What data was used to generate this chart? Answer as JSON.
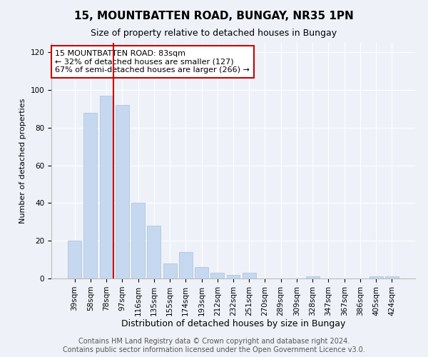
{
  "title": "15, MOUNTBATTEN ROAD, BUNGAY, NR35 1PN",
  "subtitle": "Size of property relative to detached houses in Bungay",
  "xlabel": "Distribution of detached houses by size in Bungay",
  "ylabel": "Number of detached properties",
  "categories": [
    "39sqm",
    "58sqm",
    "78sqm",
    "97sqm",
    "116sqm",
    "135sqm",
    "155sqm",
    "174sqm",
    "193sqm",
    "212sqm",
    "232sqm",
    "251sqm",
    "270sqm",
    "289sqm",
    "309sqm",
    "328sqm",
    "347sqm",
    "367sqm",
    "386sqm",
    "405sqm",
    "424sqm"
  ],
  "values": [
    20,
    88,
    97,
    92,
    40,
    28,
    8,
    14,
    6,
    3,
    2,
    3,
    0,
    0,
    0,
    1,
    0,
    0,
    0,
    1,
    1
  ],
  "bar_color": "#c5d8f0",
  "bar_edge_color": "#aabfd8",
  "highlight_bar_index": 2,
  "highlight_line_color": "#cc0000",
  "annotation_text": "15 MOUNTBATTEN ROAD: 83sqm\n← 32% of detached houses are smaller (127)\n67% of semi-detached houses are larger (266) →",
  "annotation_box_color": "#ffffff",
  "annotation_box_edge_color": "#cc0000",
  "ylim": [
    0,
    125
  ],
  "yticks": [
    0,
    20,
    40,
    60,
    80,
    100,
    120
  ],
  "background_color": "#eef2f8",
  "footer_text": "Contains HM Land Registry data © Crown copyright and database right 2024.\nContains public sector information licensed under the Open Government Licence v3.0.",
  "title_fontsize": 11,
  "subtitle_fontsize": 9,
  "xlabel_fontsize": 9,
  "ylabel_fontsize": 8,
  "tick_fontsize": 7.5,
  "footer_fontsize": 7
}
